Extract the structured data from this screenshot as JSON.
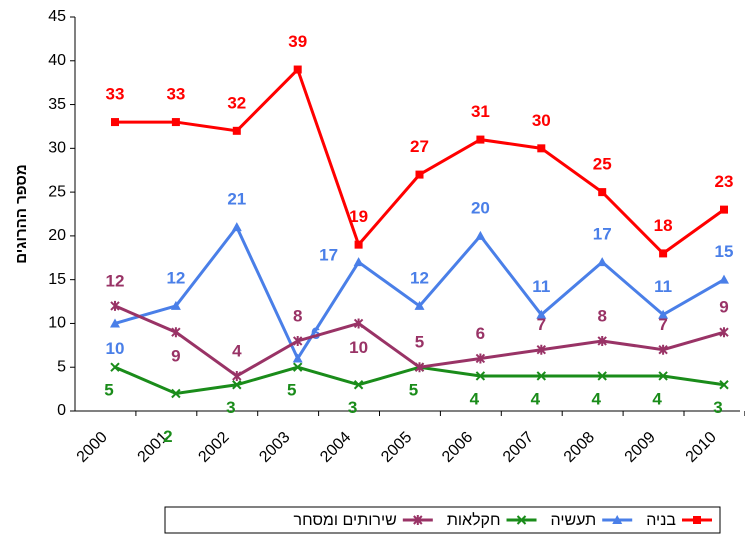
{
  "chart_data": {
    "type": "line",
    "y_label": "מספר ההרוגים",
    "categories": [
      "2000",
      "2001",
      "2002",
      "2003",
      "2004",
      "2005",
      "2006",
      "2007",
      "2008",
      "2009",
      "2010"
    ],
    "series": [
      {
        "name": "בניה",
        "color": "#ff0000",
        "marker": "square",
        "values": [
          33,
          33,
          32,
          39,
          19,
          27,
          31,
          30,
          25,
          18,
          23
        ]
      },
      {
        "name": "תעשיה",
        "color": "#4a7fe8",
        "marker": "triangle",
        "values": [
          10,
          12,
          21,
          6,
          17,
          12,
          20,
          11,
          17,
          11,
          15
        ]
      },
      {
        "name": "חקלאות",
        "color": "#1a8c1a",
        "marker": "x",
        "values": [
          5,
          2,
          3,
          5,
          3,
          5,
          4,
          4,
          4,
          4,
          3
        ]
      },
      {
        "name": "שירותים ומסחר",
        "color": "#993366",
        "marker": "star",
        "values": [
          12,
          9,
          4,
          8,
          10,
          5,
          6,
          7,
          8,
          7,
          9
        ]
      }
    ],
    "ylim": [
      0,
      45
    ],
    "yticks": [
      0,
      5,
      10,
      15,
      20,
      25,
      30,
      35,
      40,
      45
    ],
    "legend": "bottom"
  }
}
